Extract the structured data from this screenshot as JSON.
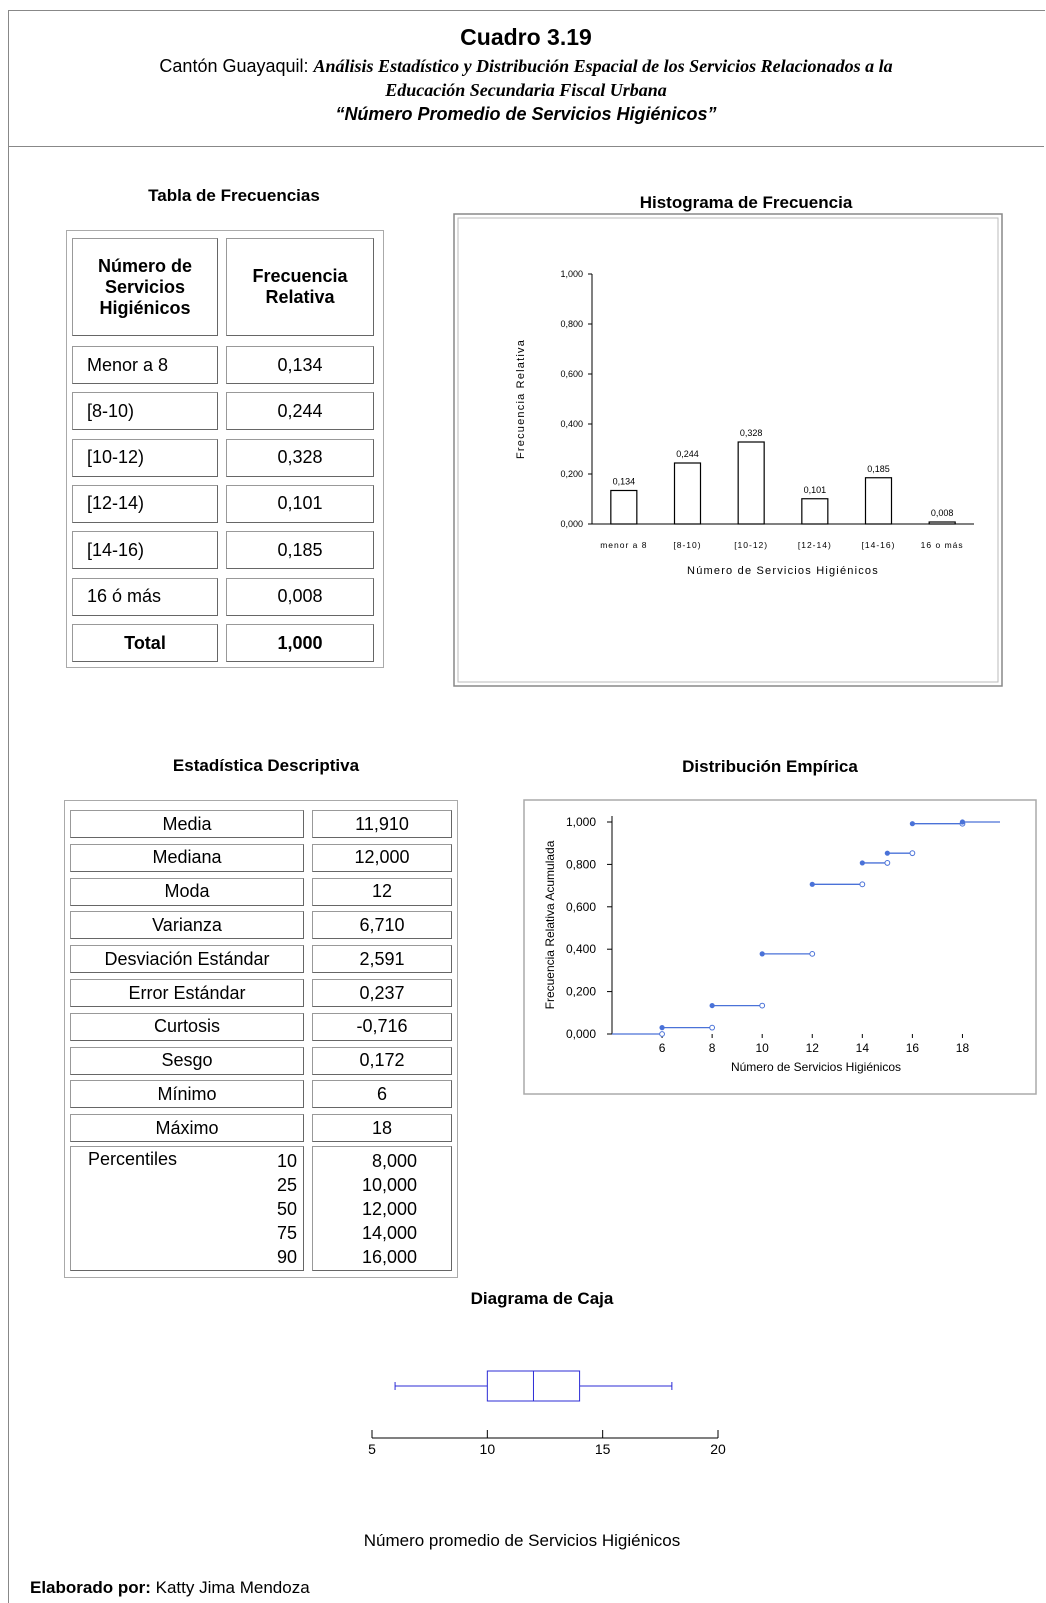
{
  "header": {
    "title": "Cuadro 3.19",
    "line1_prefix": "Cantón Guayaquil: ",
    "line1_italic": "Análisis Estadístico y Distribución Espacial  de los Servicios Relacionados a la",
    "line2": "Educación Secundaria Fiscal Urbana",
    "line3": "“Número Promedio de Servicios Higiénicos”"
  },
  "freq_table": {
    "title": "Tabla de Frecuencias",
    "col1": "Número de Servicios Higiénicos",
    "col2": "Frecuencia Relativa",
    "rows": [
      {
        "label": "Menor a 8",
        "value": "0,134"
      },
      {
        "label": "[8-10)",
        "value": "0,244"
      },
      {
        "label": "[10-12)",
        "value": "0,328"
      },
      {
        "label": "[12-14)",
        "value": "0,101"
      },
      {
        "label": "[14-16)",
        "value": "0,185"
      },
      {
        "label": "16 ó más",
        "value": "0,008"
      }
    ],
    "total_label": "Total",
    "total_value": "1,000"
  },
  "stats_table": {
    "title": "Estadística Descriptiva",
    "rows": [
      {
        "label": "Media",
        "value": "11,910"
      },
      {
        "label": "Mediana",
        "value": "12,000"
      },
      {
        "label": "Moda",
        "value": "12"
      },
      {
        "label": "Varianza",
        "value": "6,710"
      },
      {
        "label": "Desviación Estándar",
        "value": "2,591"
      },
      {
        "label": "Error Estándar",
        "value": "0,237"
      },
      {
        "label": "Curtosis",
        "value": "-0,716"
      },
      {
        "label": "Sesgo",
        "value": "0,172"
      },
      {
        "label": "Mínimo",
        "value": "6"
      },
      {
        "label": "Máximo",
        "value": "18"
      }
    ],
    "percentiles_label": "Percentiles",
    "percentiles": [
      {
        "p": "10",
        "value": "8,000"
      },
      {
        "p": "25",
        "value": "10,000"
      },
      {
        "p": "50",
        "value": "12,000"
      },
      {
        "p": "75",
        "value": "14,000"
      },
      {
        "p": "90",
        "value": "16,000"
      }
    ]
  },
  "footer": {
    "label": "Elaborado por:",
    "name": " Katty Jima Mendoza"
  },
  "chart_data": [
    {
      "type": "bar",
      "title": "Histograma de Frecuencia",
      "xlabel": "Número de Servicios Higiénicos",
      "ylabel": "Frecuencia Relativa",
      "categories": [
        "menor a 8",
        "[8-10)",
        "[10-12)",
        "[12-14)",
        "[14-16)",
        "16 o más"
      ],
      "values": [
        0.134,
        0.244,
        0.328,
        0.101,
        0.185,
        0.008
      ],
      "value_labels": [
        "0,134",
        "0,244",
        "0,328",
        "0,101",
        "0,185",
        "0,008"
      ],
      "ylim": [
        0,
        1
      ],
      "yticks": [
        0,
        0.2,
        0.4,
        0.6,
        0.8,
        1.0
      ],
      "ytick_labels": [
        "0,000",
        "0,200",
        "0,400",
        "0,600",
        "0,800",
        "1,000"
      ],
      "color": "#000000"
    },
    {
      "type": "line",
      "title": "Distribución Empírica",
      "xlabel": "Número de Servicios Higiénicos",
      "ylabel": "Frecuencia Relativa Acumulada",
      "xlim": [
        4,
        19.5
      ],
      "ylim": [
        0,
        1.05
      ],
      "xticks": [
        6,
        8,
        10,
        12,
        14,
        16,
        18
      ],
      "yticks": [
        0,
        0.2,
        0.4,
        0.6,
        0.8,
        1.0
      ],
      "ytick_labels": [
        "0,000",
        "0,200",
        "0,400",
        "0,600",
        "0,800",
        "1,000"
      ],
      "steps": [
        {
          "x0": 4,
          "x1": 6,
          "y": 0.0
        },
        {
          "x0": 6,
          "x1": 8,
          "y": 0.03
        },
        {
          "x0": 8,
          "x1": 10,
          "y": 0.134
        },
        {
          "x0": 10,
          "x1": 12,
          "y": 0.378
        },
        {
          "x0": 12,
          "x1": 14,
          "y": 0.706
        },
        {
          "x0": 14,
          "x1": 15,
          "y": 0.807
        },
        {
          "x0": 15,
          "x1": 16,
          "y": 0.853
        },
        {
          "x0": 16,
          "x1": 18,
          "y": 0.992
        },
        {
          "x0": 18,
          "x1": 19.5,
          "y": 1.0
        }
      ],
      "color": "#4a72d8"
    },
    {
      "type": "box",
      "title": "Diagrama de Caja",
      "xlabel": "Número promedio de Servicios Higiénicos",
      "min": 6,
      "q1": 10,
      "median": 12,
      "q3": 14,
      "max": 18,
      "xlim": [
        5,
        20
      ],
      "xticks": [
        5,
        10,
        15,
        20
      ],
      "color": "#2b2bd6"
    }
  ]
}
